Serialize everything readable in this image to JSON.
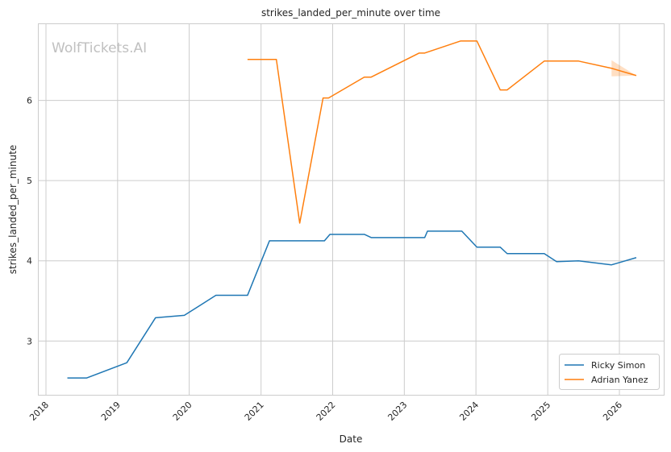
{
  "chart_data": {
    "type": "line",
    "title": "strikes_landed_per_minute over time",
    "xlabel": "Date",
    "ylabel": "strikes_landed_per_minute",
    "watermark": "WolfTickets.AI",
    "xlim": [
      "2017-11-25",
      "2026-08-15"
    ],
    "ylim": [
      2.33,
      6.95
    ],
    "x_ticks": [
      "2018",
      "2019",
      "2020",
      "2021",
      "2022",
      "2023",
      "2024",
      "2025",
      "2026"
    ],
    "y_ticks": [
      3,
      4,
      5,
      6
    ],
    "grid": true,
    "legend_position": "bottom-right",
    "series": [
      {
        "name": "Ricky Simon",
        "color": "#1f77b4",
        "x": [
          "2018-04-20",
          "2018-07-28",
          "2019-02-17",
          "2019-07-13",
          "2019-12-07",
          "2020-05-16",
          "2020-10-24",
          "2021-02-13",
          "2021-11-20",
          "2021-12-18",
          "2022-06-11",
          "2022-07-16",
          "2023-04-15",
          "2023-04-29",
          "2023-10-21",
          "2024-01-06",
          "2024-05-04",
          "2024-06-08",
          "2024-12-14",
          "2025-02-15",
          "2025-06-07",
          "2025-11-22",
          "2026-03-28"
        ],
        "values": [
          2.54,
          2.54,
          2.73,
          3.29,
          3.32,
          3.57,
          3.57,
          4.25,
          4.25,
          4.33,
          4.33,
          4.29,
          4.29,
          4.37,
          4.37,
          4.17,
          4.17,
          4.09,
          4.09,
          3.99,
          4.0,
          3.95,
          4.04
        ]
      },
      {
        "name": "Adrian Yanez",
        "color": "#ff7f0e",
        "x": [
          "2020-10-24",
          "2021-03-20",
          "2021-07-17",
          "2021-11-13",
          "2021-12-11",
          "2022-06-11",
          "2022-07-16",
          "2023-03-18",
          "2023-04-15",
          "2023-10-14",
          "2024-01-06",
          "2024-05-04",
          "2024-06-08",
          "2024-12-14",
          "2025-06-07",
          "2025-11-22",
          "2026-03-28"
        ],
        "values": [
          6.51,
          6.51,
          4.47,
          6.03,
          6.03,
          6.29,
          6.29,
          6.59,
          6.59,
          6.74,
          6.74,
          6.13,
          6.13,
          6.49,
          6.49,
          6.4,
          6.31
        ],
        "band": {
          "x": [
            "2025-11-22",
            "2026-03-28"
          ],
          "upper": [
            6.5,
            6.31
          ],
          "lower": [
            6.3,
            6.31
          ]
        }
      }
    ]
  }
}
